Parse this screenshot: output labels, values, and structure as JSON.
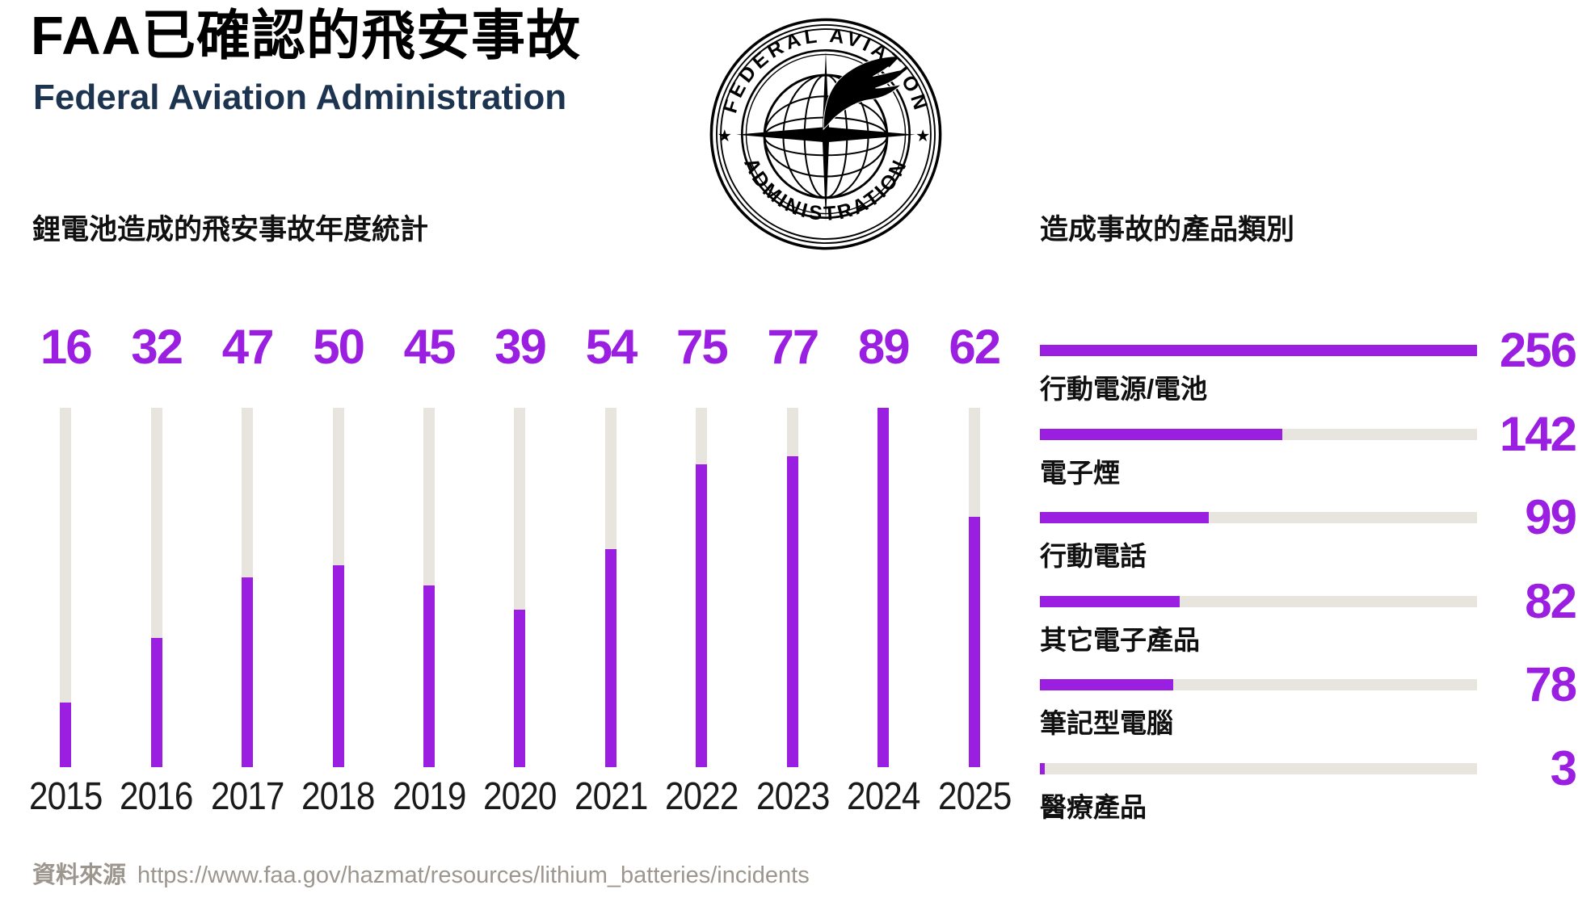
{
  "header": {
    "title": "FAA已確認的飛安事故",
    "subtitle": "Federal Aviation Administration"
  },
  "seal": {
    "top_text": "FEDERAL AVIATION",
    "bottom_text": "ADMINISTRATION",
    "star": "★"
  },
  "chart_data": [
    {
      "type": "bar",
      "orientation": "vertical",
      "title": "鋰電池造成的飛安事故年度統計",
      "categories": [
        "2015",
        "2016",
        "2017",
        "2018",
        "2019",
        "2020",
        "2021",
        "2022",
        "2023",
        "2024",
        "2025"
      ],
      "values": [
        16,
        32,
        47,
        50,
        45,
        39,
        54,
        75,
        77,
        89,
        62
      ],
      "ylim": [
        0,
        89
      ],
      "value_labels": "above bars",
      "axis_lines": "none",
      "grid": false,
      "bar_color": "#9B1FE1",
      "track_color": "#E8E5DF"
    },
    {
      "type": "bar",
      "orientation": "horizontal",
      "title": "造成事故的產品類別",
      "categories": [
        "行動電源/電池",
        "電子煙",
        "行動電話",
        "其它電子產品",
        "筆記型電腦",
        "醫療產品"
      ],
      "values": [
        256,
        142,
        99,
        82,
        78,
        3
      ],
      "xlim": [
        0,
        256
      ],
      "value_labels": "right of bars",
      "axis_lines": "none",
      "grid": false,
      "bar_color": "#9B1FE1",
      "track_color": "#E8E5DF"
    }
  ],
  "footer": {
    "source_label": "資料來源",
    "source_url": "https://www.faa.gov/hazmat/resources/lithium_batteries/incidents"
  },
  "colors": {
    "accent": "#9B1FE1",
    "track": "#E8E5DF",
    "subtitle": "#1C3450",
    "footer_text": "#9C968E"
  }
}
